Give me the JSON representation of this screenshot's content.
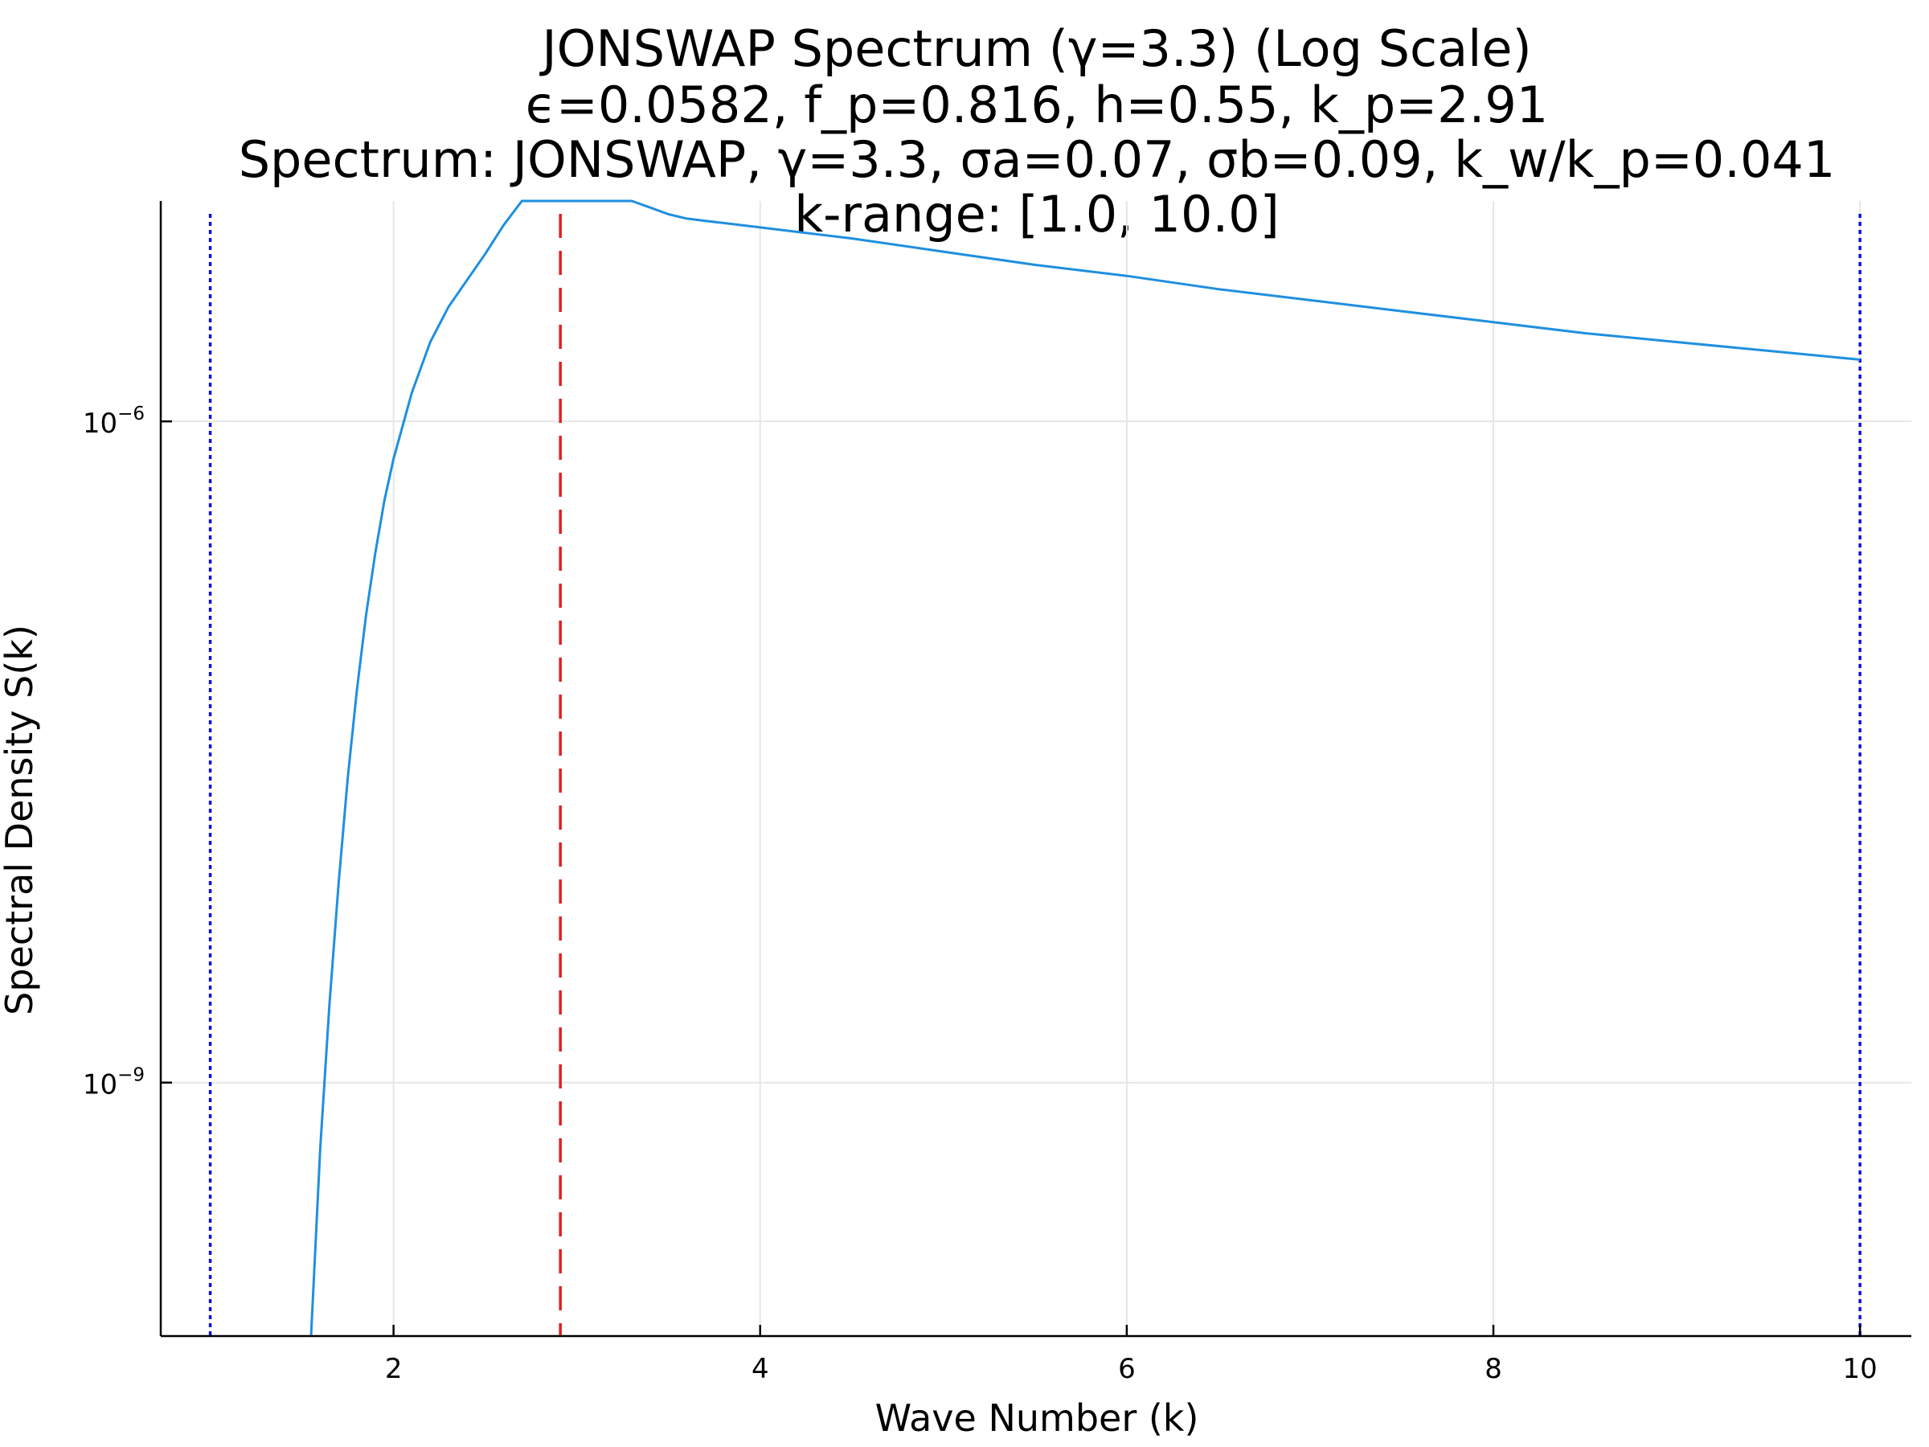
{
  "chart_data": {
    "type": "line",
    "title_lines": [
      "JONSWAP Spectrum (γ=3.3) (Log Scale)",
      "ϵ=0.0582, f_p=0.816, h=0.55, k_p=2.91",
      "Spectrum: JONSWAP, γ=3.3, σa=0.07, σb=0.09, k_w/k_p=0.041",
      "k-range: [1.0, 10.0]"
    ],
    "xlabel": "Wave Number (k)",
    "ylabel": "Spectral Density S(k)",
    "xlim": [
      0.73,
      10.28
    ],
    "ylim_log10": [
      -10.15,
      -5.0
    ],
    "yscale": "log",
    "grid": true,
    "legend": "none",
    "x_ticks": [
      {
        "value": 2,
        "label": "2"
      },
      {
        "value": 4,
        "label": "4"
      },
      {
        "value": 6,
        "label": "6"
      },
      {
        "value": 8,
        "label": "8"
      },
      {
        "value": 10,
        "label": "10"
      }
    ],
    "y_ticks": [
      {
        "log10": -6,
        "base": "10",
        "exp": "−6"
      },
      {
        "log10": -9,
        "base": "10",
        "exp": "−9"
      }
    ],
    "series": [
      {
        "color": "#1f8fe0",
        "style": "solid",
        "x": [
          1.55,
          1.6,
          1.65,
          1.7,
          1.75,
          1.8,
          1.85,
          1.9,
          1.95,
          2.0,
          2.1,
          2.2,
          2.3,
          2.4,
          2.5,
          2.6,
          2.7,
          2.8,
          2.85,
          2.9,
          2.95,
          3.0,
          3.05,
          3.1,
          3.2,
          3.3,
          3.4,
          3.5,
          3.6,
          3.7,
          3.8,
          4.0,
          4.5,
          5.0,
          5.5,
          6.0,
          6.5,
          7.0,
          7.5,
          8.0,
          8.5,
          9.0,
          9.5,
          10.0
        ],
        "log10_y": [
          -10.15,
          -9.3,
          -8.65,
          -8.1,
          -7.62,
          -7.22,
          -6.88,
          -6.6,
          -6.36,
          -6.17,
          -5.87,
          -5.64,
          -5.48,
          -5.36,
          -5.24,
          -5.11,
          -4.97,
          -4.85,
          -4.81,
          -4.79,
          -4.785,
          -4.79,
          -4.81,
          -4.84,
          -4.91,
          -4.98,
          -5.03,
          -5.06,
          -5.08,
          -5.09,
          -5.1,
          -5.12,
          -5.17,
          -5.23,
          -5.29,
          -5.34,
          -5.4,
          -5.45,
          -5.5,
          -5.55,
          -5.6,
          -5.64,
          -5.68,
          -5.72
        ]
      }
    ],
    "vertical_lines": [
      {
        "x": 2.91,
        "color": "#e02020",
        "style": "dashed"
      },
      {
        "x": 1.0,
        "color": "#1010e0",
        "style": "dotted"
      },
      {
        "x": 10.0,
        "color": "#1010e0",
        "style": "dotted"
      }
    ]
  }
}
